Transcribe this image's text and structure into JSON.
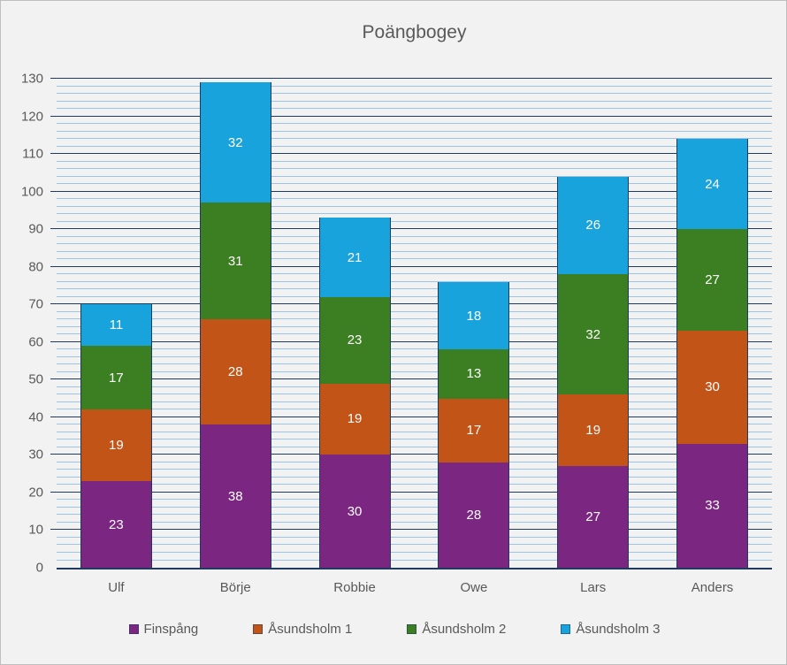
{
  "chart_data": {
    "type": "bar",
    "subtype": "stacked-column",
    "title": "Poängbogey",
    "categories": [
      "Ulf",
      "Börje",
      "Robbie",
      "Owe",
      "Lars",
      "Anders"
    ],
    "series": [
      {
        "name": "Finspång",
        "color": "#7B2681",
        "values": [
          23,
          38,
          30,
          28,
          27,
          33
        ]
      },
      {
        "name": "Åsundsholm 1",
        "color": "#C25417",
        "values": [
          19,
          28,
          19,
          17,
          19,
          30
        ]
      },
      {
        "name": "Åsundsholm 2",
        "color": "#3C7E22",
        "values": [
          17,
          31,
          23,
          13,
          32,
          27
        ]
      },
      {
        "name": "Åsundsholm 3",
        "color": "#18A3DC",
        "values": [
          11,
          32,
          21,
          18,
          26,
          24
        ]
      }
    ],
    "ylim": [
      0,
      130
    ],
    "y_major_unit": 10,
    "y_minor_unit": 2,
    "y_tick_labels": [
      "0",
      "10",
      "20",
      "30",
      "40",
      "50",
      "60",
      "70",
      "80",
      "90",
      "100",
      "110",
      "120",
      "130"
    ],
    "grid": {
      "major_color": "#1F3A5C",
      "minor_color": "#9DC3E6",
      "minor_on": true
    },
    "data_labels_on": true,
    "data_label_color": "#FFFFFF",
    "axis_text_color": "#595959",
    "title_color": "#595959",
    "bar_border_color": "#1F3A5C",
    "legend_position": "bottom"
  }
}
